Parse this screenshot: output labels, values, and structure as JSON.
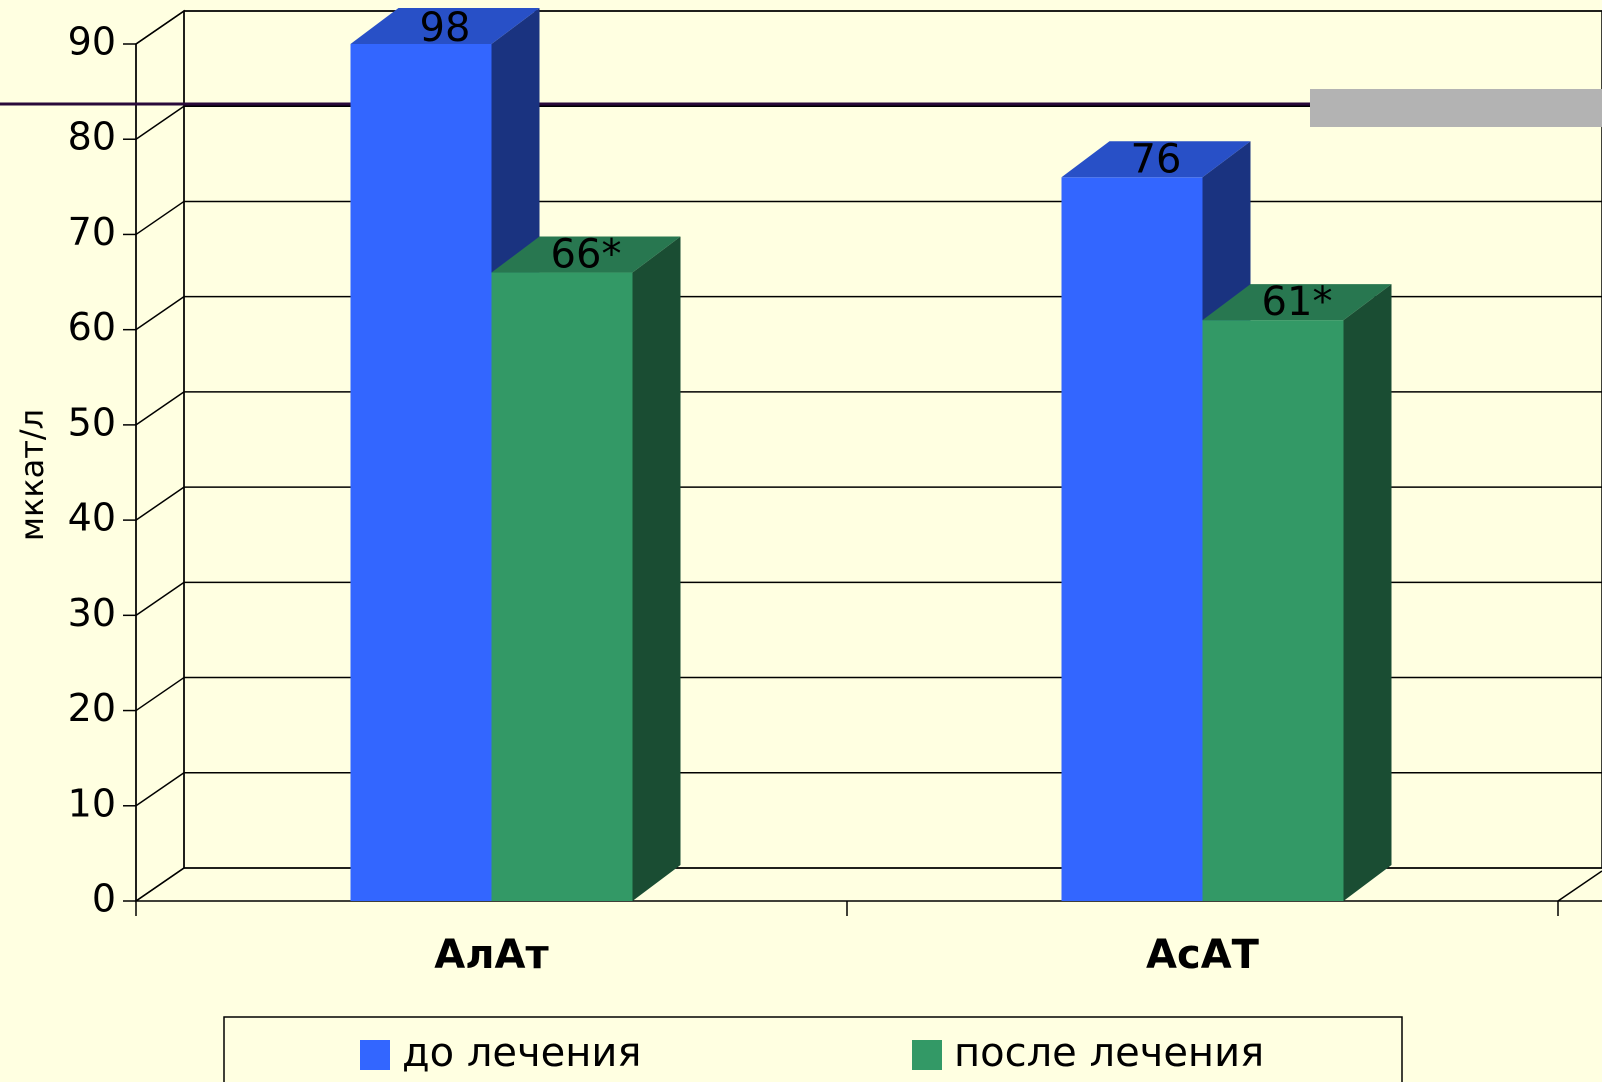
{
  "chart_data": {
    "type": "bar3d",
    "y_axis_label": "мккат/л",
    "categories": [
      "АлАт",
      "АсАТ"
    ],
    "series": [
      {
        "name": "до лечения",
        "color": "#3366ff",
        "values": [
          98,
          76
        ]
      },
      {
        "name": "после лечения",
        "color": "#339966",
        "values": [
          66,
          61
        ],
        "value_labels": [
          "66*",
          "61*"
        ]
      }
    ],
    "ylim": [
      0,
      90
    ],
    "yticks": [
      0,
      10,
      20,
      30,
      40,
      50,
      60,
      70,
      80,
      90
    ],
    "grid": true,
    "legend": "bottom"
  }
}
